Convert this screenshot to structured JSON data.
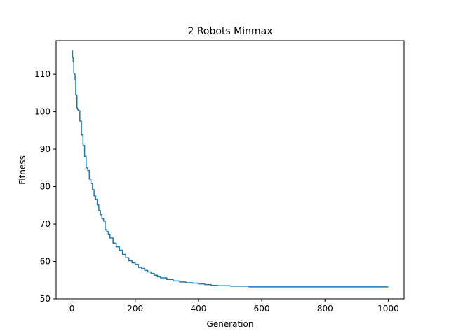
{
  "chart_data": {
    "type": "line",
    "title": "2 Robots Minmax",
    "xlabel": "Generation",
    "ylabel": "Fitness",
    "xlim": [
      -50,
      1050
    ],
    "ylim": [
      50,
      119
    ],
    "xticks": [
      0,
      200,
      400,
      600,
      800,
      1000
    ],
    "yticks": [
      50,
      60,
      70,
      80,
      90,
      100,
      110
    ],
    "grid": false,
    "series": [
      {
        "color": "#1f77b4",
        "x": [
          0,
          2,
          4,
          6,
          8,
          10,
          12,
          14,
          16,
          18,
          20,
          25,
          30,
          35,
          40,
          45,
          50,
          55,
          60,
          65,
          70,
          75,
          80,
          85,
          90,
          95,
          100,
          105,
          110,
          115,
          120,
          130,
          140,
          150,
          160,
          170,
          180,
          190,
          200,
          210,
          220,
          230,
          240,
          250,
          260,
          270,
          280,
          300,
          320,
          340,
          360,
          380,
          400,
          420,
          440,
          460,
          480,
          500,
          530,
          560,
          600,
          700,
          800,
          900,
          1000
        ],
        "y": [
          116.2,
          114.5,
          113.4,
          110.3,
          110.0,
          108.5,
          104.5,
          104.3,
          101.0,
          100.6,
          100.3,
          97.5,
          93.8,
          91.0,
          88.1,
          85.0,
          84.3,
          82.0,
          80.8,
          79.2,
          77.5,
          76.6,
          75.1,
          73.6,
          72.5,
          71.4,
          70.8,
          68.5,
          68.0,
          67.3,
          66.3,
          64.9,
          63.9,
          63.0,
          61.9,
          61.0,
          60.2,
          59.6,
          59.2,
          58.4,
          58.1,
          57.6,
          57.2,
          56.8,
          56.3,
          55.9,
          55.6,
          55.2,
          54.8,
          54.5,
          54.3,
          54.2,
          54.0,
          53.8,
          53.6,
          53.5,
          53.5,
          53.4,
          53.4,
          53.2,
          53.2,
          53.2,
          53.2,
          53.2,
          53.2
        ]
      }
    ]
  }
}
